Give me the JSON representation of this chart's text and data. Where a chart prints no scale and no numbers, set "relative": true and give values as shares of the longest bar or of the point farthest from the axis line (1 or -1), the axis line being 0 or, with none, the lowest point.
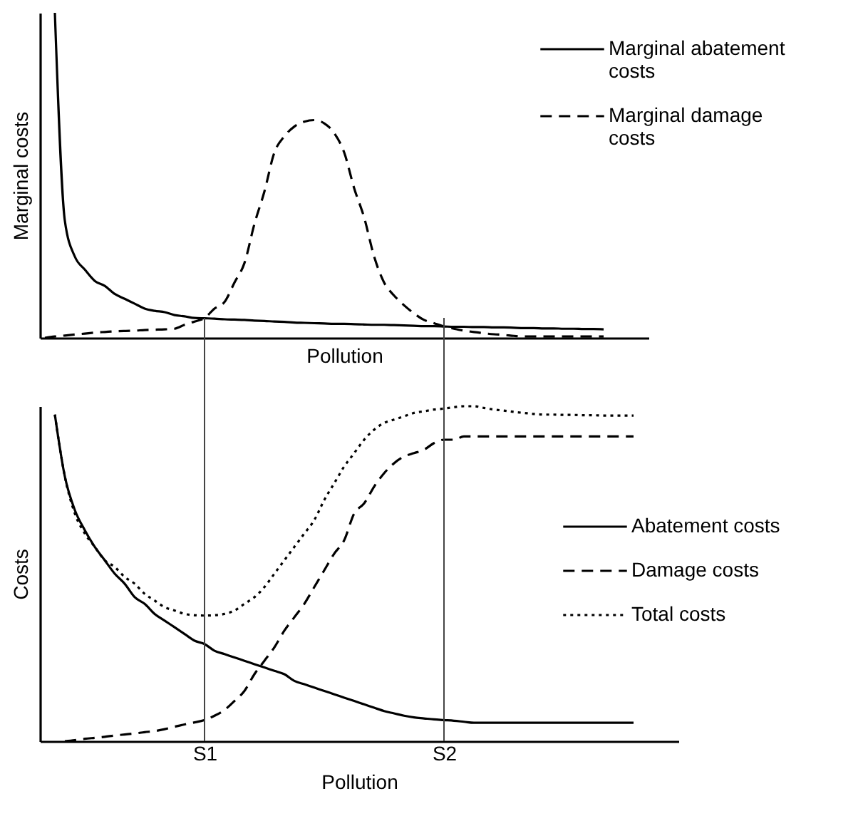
{
  "chart_data": [
    {
      "type": "line",
      "relative": true,
      "ylabel": "Marginal costs",
      "xlabel": "Pollution",
      "legend": "top right",
      "categories": [
        null,
        null,
        null,
        null,
        null,
        null,
        null,
        null,
        null,
        null,
        null,
        null,
        null,
        null,
        null,
        null,
        null,
        null,
        null,
        null,
        null,
        null,
        null,
        null,
        null,
        null,
        null,
        null,
        null,
        null,
        null,
        null,
        null,
        null,
        null,
        null,
        null,
        null,
        null,
        null,
        null,
        null,
        null,
        null,
        null,
        null,
        null,
        null,
        null,
        null,
        null,
        null,
        null,
        null,
        null,
        null,
        null,
        null,
        null,
        null,
        null
      ],
      "series": [
        {
          "name": "Marginal abatement costs",
          "color": "#000000",
          "line_style": "solid",
          "values": [
            null,
            1,
            0.36,
            0.25,
            0.21,
            0.175,
            0.16,
            0.135,
            0.12,
            0.105,
            0.09,
            0.083,
            0.079,
            0.07,
            0.066,
            0.061,
            0.06,
            0.059,
            0.057,
            0.056,
            0.055,
            0.053,
            0.052,
            0.05,
            0.049,
            0.047,
            0.046,
            0.045,
            0.044,
            0.043,
            0.043,
            0.042,
            0.041,
            0.04,
            0.04,
            0.039,
            0.038,
            0.037,
            0.036,
            0.036,
            0.035,
            0.034,
            0.034,
            0.033,
            0.033,
            0.032,
            0.032,
            0.031,
            0.03,
            0.03,
            0.029,
            0.029,
            0.028,
            0.028,
            0.027,
            0.027,
            0.026,
            null,
            null,
            null,
            null
          ]
        },
        {
          "name": "Marginal damage costs",
          "color": "#000000",
          "line_style": "dashed",
          "values": [
            0,
            0.004,
            0.007,
            0.01,
            0.013,
            0.016,
            0.018,
            0.02,
            0.021,
            0.022,
            0.024,
            0.025,
            0.026,
            0.028,
            0.04,
            0.05,
            0.061,
            0.09,
            0.11,
            0.17,
            0.23,
            0.35,
            0.45,
            0.57,
            0.62,
            0.65,
            0.665,
            0.67,
            0.66,
            0.63,
            0.57,
            0.46,
            0.37,
            0.25,
            0.17,
            0.13,
            0.1,
            0.075,
            0.055,
            0.045,
            0.035,
            0.028,
            0.022,
            0.018,
            0.014,
            0.011,
            0.009,
            0.006,
            0.004,
            0.004,
            0.004,
            0.004,
            0.004,
            0.004,
            0.004,
            0.004,
            0.004,
            null,
            null,
            null,
            null
          ]
        }
      ]
    },
    {
      "type": "line",
      "relative": true,
      "ylabel": "Costs",
      "xlabel": "Pollution",
      "legend": "right",
      "categories": [
        null,
        null,
        null,
        null,
        null,
        null,
        null,
        null,
        null,
        null,
        null,
        null,
        null,
        null,
        null,
        null,
        "S1",
        null,
        null,
        null,
        null,
        null,
        null,
        null,
        null,
        null,
        null,
        null,
        null,
        null,
        null,
        null,
        null,
        null,
        null,
        null,
        null,
        null,
        null,
        null,
        "S2",
        null,
        null,
        null,
        null,
        null,
        null,
        null,
        null,
        null,
        null,
        null,
        null,
        null,
        null,
        null,
        null,
        null,
        null,
        null,
        null,
        null,
        null,
        null
      ],
      "ref_lines": [
        {
          "axis": "x",
          "value": "S1",
          "color": "#444444"
        },
        {
          "axis": "x",
          "value": "S2",
          "color": "#444444"
        }
      ],
      "series": [
        {
          "name": "Abatement costs",
          "color": "#000000",
          "line_style": "solid",
          "values": [
            null,
            0.975,
            0.79,
            0.69,
            0.63,
            0.58,
            0.54,
            0.5,
            0.47,
            0.43,
            0.41,
            0.38,
            0.36,
            0.34,
            0.32,
            0.3,
            0.29,
            0.27,
            0.26,
            0.25,
            0.24,
            0.23,
            0.22,
            0.21,
            0.2,
            0.18,
            0.17,
            0.16,
            0.15,
            0.14,
            0.13,
            0.12,
            0.11,
            0.1,
            0.09,
            0.083,
            0.076,
            0.071,
            0.068,
            0.065,
            0.063,
            0.061,
            0.058,
            0.055,
            0.055,
            0.055,
            0.055,
            0.055,
            0.055,
            0.055,
            0.055,
            0.055,
            0.055,
            0.055,
            0.055,
            0.055,
            0.055,
            0.055,
            0.055,
            0.055,
            null,
            null,
            null,
            null
          ]
        },
        {
          "name": "Damage costs",
          "color": "#000000",
          "line_style": "dashed",
          "values": [
            null,
            null,
            0,
            0.003,
            0.007,
            0.01,
            0.013,
            0.017,
            0.02,
            0.023,
            0.027,
            0.03,
            0.036,
            0.043,
            0.05,
            0.056,
            0.063,
            0.076,
            0.093,
            0.12,
            0.15,
            0.2,
            0.24,
            0.28,
            0.33,
            0.37,
            0.41,
            0.46,
            0.51,
            0.56,
            0.6,
            0.68,
            0.71,
            0.76,
            0.8,
            0.83,
            0.85,
            0.86,
            0.87,
            0.89,
            0.9,
            0.9,
            0.91,
            0.91,
            0.91,
            0.91,
            0.91,
            0.91,
            0.91,
            0.91,
            0.91,
            0.91,
            0.91,
            0.91,
            0.91,
            0.91,
            0.91,
            0.91,
            0.91,
            0.91,
            null,
            null,
            null,
            null
          ]
        },
        {
          "name": "Total costs",
          "color": "#000000",
          "line_style": "dotted",
          "values": [
            null,
            0.975,
            0.79,
            0.68,
            0.62,
            0.58,
            0.54,
            0.52,
            0.49,
            0.47,
            0.44,
            0.42,
            0.4,
            0.39,
            0.38,
            0.376,
            0.375,
            0.376,
            0.38,
            0.39,
            0.41,
            0.43,
            0.46,
            0.5,
            0.54,
            0.58,
            0.62,
            0.66,
            0.72,
            0.77,
            0.82,
            0.86,
            0.9,
            0.93,
            0.95,
            0.96,
            0.97,
            0.98,
            0.985,
            0.99,
            0.993,
            0.997,
            1,
            1,
            0.995,
            0.99,
            0.987,
            0.983,
            0.98,
            0.977,
            0.975,
            0.975,
            0.974,
            0.974,
            0.973,
            0.973,
            0.972,
            0.972,
            0.972,
            0.972,
            null,
            null,
            null,
            null
          ]
        }
      ]
    }
  ]
}
